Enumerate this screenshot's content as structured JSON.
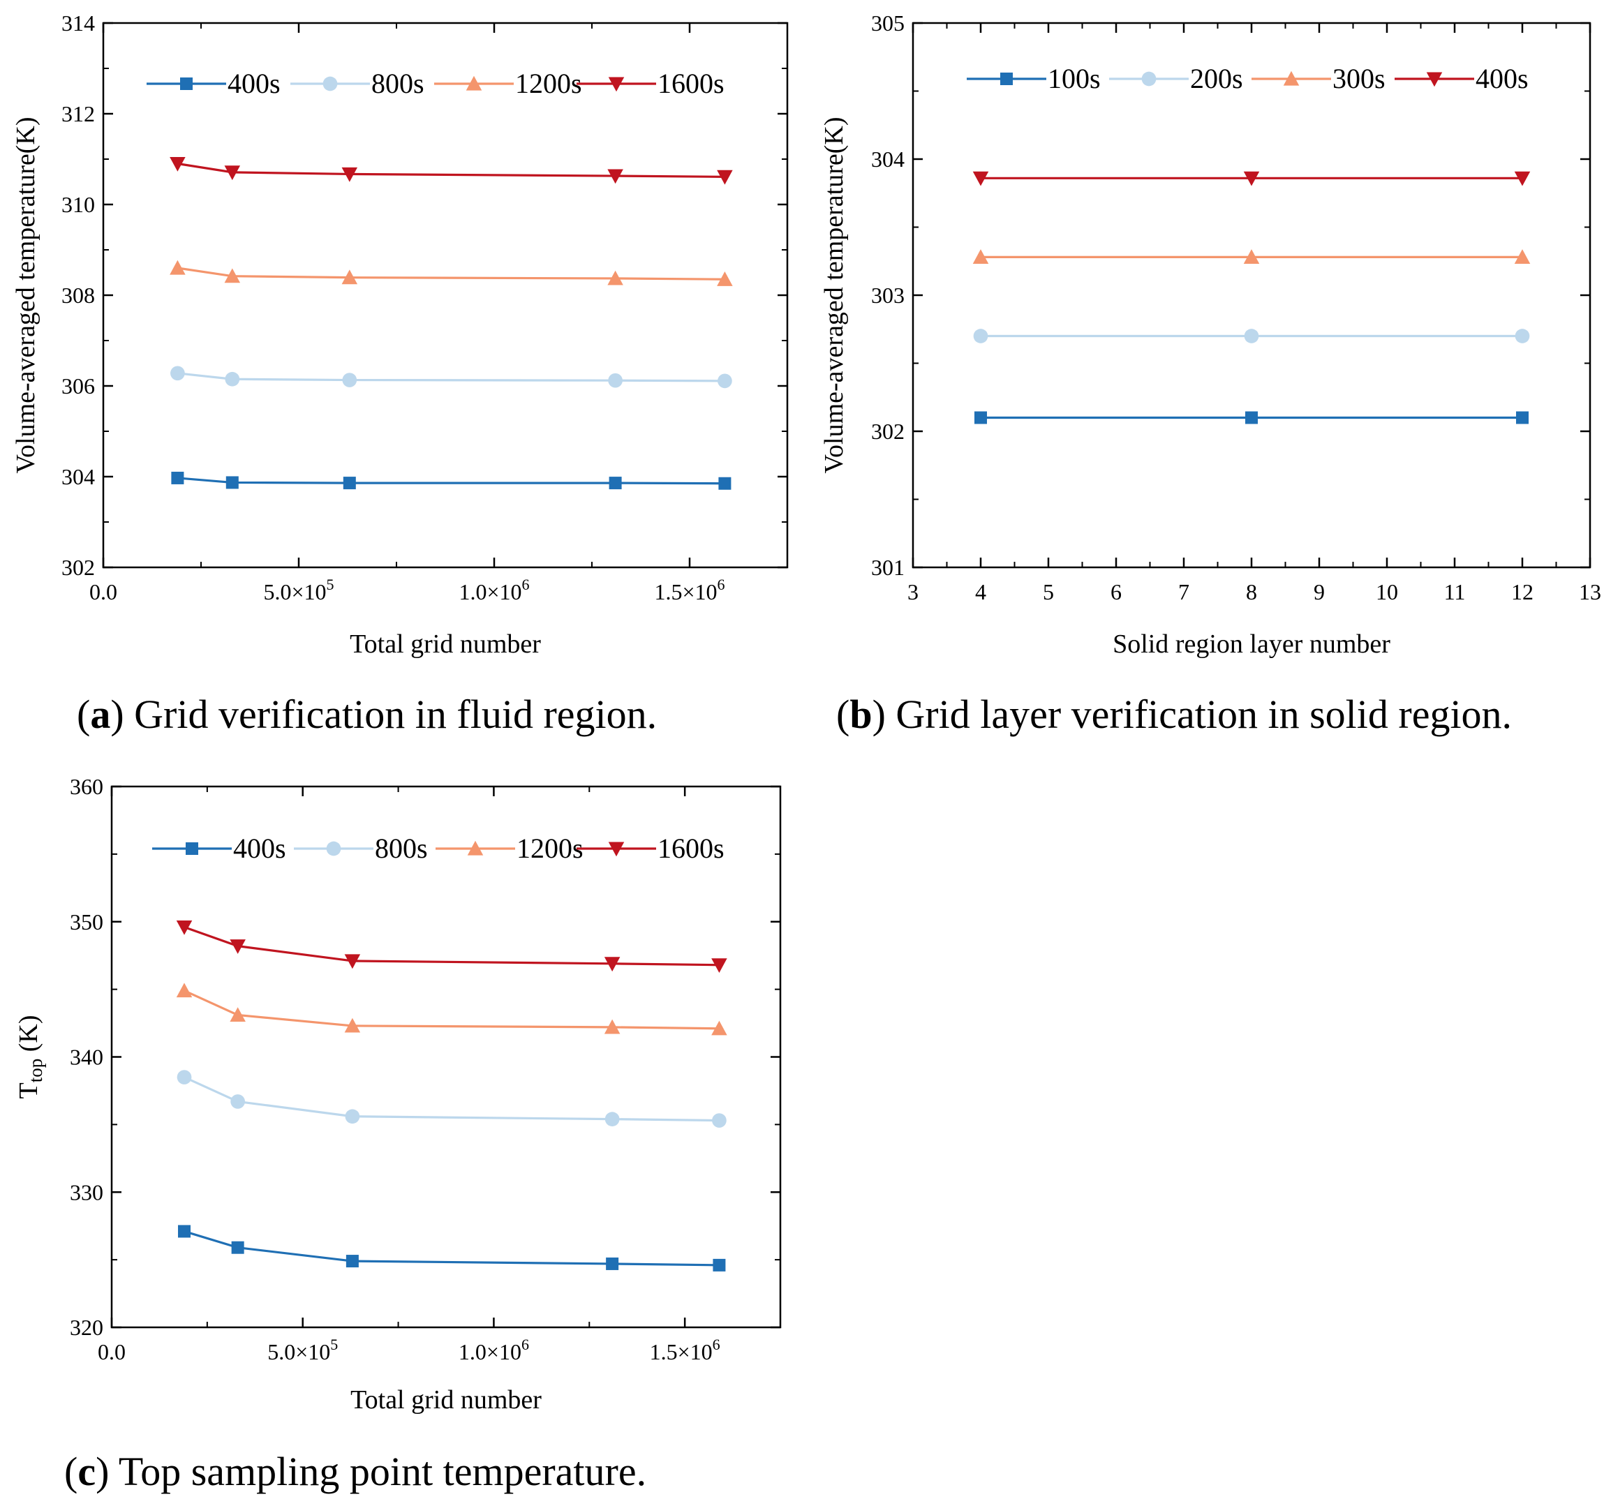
{
  "panels": [
    {
      "caption_letter": "a",
      "caption_text": "Grid verification in fluid region.",
      "chart_data": {
        "type": "line",
        "xlabel": "Total grid number",
        "ylabel": "Volume-averaged temperature(K)",
        "xlim": [
          0,
          1750000
        ],
        "ylim": [
          302,
          314
        ],
        "x_ticks": [
          0,
          500000,
          1000000,
          1500000
        ],
        "x_tick_labels": [
          {
            "text": "0.0",
            "sup": ""
          },
          {
            "text": "5.0×10",
            "sup": "5"
          },
          {
            "text": "1.0×10",
            "sup": "6"
          },
          {
            "text": "1.5×10",
            "sup": "6"
          }
        ],
        "y_ticks": [
          302,
          304,
          306,
          308,
          310,
          312,
          314
        ],
        "x": [
          190000,
          330000,
          630000,
          1310000,
          1590000
        ],
        "series": [
          {
            "name": "400s",
            "color": "#1f6fb4",
            "marker": "square",
            "values": [
              303.97,
              303.87,
              303.86,
              303.86,
              303.85
            ]
          },
          {
            "name": "800s",
            "color": "#bcd7ec",
            "marker": "circle",
            "values": [
              306.28,
              306.15,
              306.13,
              306.12,
              306.11
            ]
          },
          {
            "name": "1200s",
            "color": "#f4956c",
            "marker": "triangle-up",
            "values": [
              308.6,
              308.42,
              308.39,
              308.37,
              308.35
            ]
          },
          {
            "name": "1600s",
            "color": "#c0141f",
            "marker": "triangle-down",
            "values": [
              310.9,
              310.71,
              310.67,
              310.63,
              310.61
            ]
          }
        ],
        "legend": "top, horizontal"
      }
    },
    {
      "caption_letter": "b",
      "caption_text": "Grid layer verification in solid region.",
      "chart_data": {
        "type": "line",
        "xlabel": "Solid region layer number",
        "ylabel": "Volume-averaged temperature(K)",
        "xlim": [
          3,
          13
        ],
        "ylim": [
          301,
          305
        ],
        "x_ticks": [
          3,
          4,
          5,
          6,
          7,
          8,
          9,
          10,
          11,
          12,
          13
        ],
        "x_tick_labels": [
          {
            "text": "3",
            "sup": ""
          },
          {
            "text": "4",
            "sup": ""
          },
          {
            "text": "5",
            "sup": ""
          },
          {
            "text": "6",
            "sup": ""
          },
          {
            "text": "7",
            "sup": ""
          },
          {
            "text": "8",
            "sup": ""
          },
          {
            "text": "9",
            "sup": ""
          },
          {
            "text": "10",
            "sup": ""
          },
          {
            "text": "11",
            "sup": ""
          },
          {
            "text": "12",
            "sup": ""
          },
          {
            "text": "13",
            "sup": ""
          }
        ],
        "y_ticks": [
          301,
          302,
          303,
          304,
          305
        ],
        "x": [
          4,
          8,
          12
        ],
        "series": [
          {
            "name": "100s",
            "color": "#1f6fb4",
            "marker": "square",
            "values": [
              302.1,
              302.1,
              302.1
            ]
          },
          {
            "name": "200s",
            "color": "#bcd7ec",
            "marker": "circle",
            "values": [
              302.7,
              302.7,
              302.7
            ]
          },
          {
            "name": "300s",
            "color": "#f4956c",
            "marker": "triangle-up",
            "values": [
              303.28,
              303.28,
              303.28
            ]
          },
          {
            "name": "400s",
            "color": "#c0141f",
            "marker": "triangle-down",
            "values": [
              303.86,
              303.86,
              303.86
            ]
          }
        ],
        "legend": "top, horizontal"
      }
    },
    {
      "caption_letter": "c",
      "caption_text": "Top sampling point temperature.",
      "chart_data": {
        "type": "line",
        "xlabel": "Total grid number",
        "ylabel": "T",
        "ylabel_sub": "top",
        "ylabel_suffix": " (K)",
        "xlim": [
          0,
          1750000
        ],
        "ylim": [
          320,
          360
        ],
        "x_ticks": [
          0,
          500000,
          1000000,
          1500000
        ],
        "x_tick_labels": [
          {
            "text": "0.0",
            "sup": ""
          },
          {
            "text": "5.0×10",
            "sup": "5"
          },
          {
            "text": "1.0×10",
            "sup": "6"
          },
          {
            "text": "1.5×10",
            "sup": "6"
          }
        ],
        "y_ticks": [
          320,
          330,
          340,
          350,
          360
        ],
        "x": [
          190000,
          330000,
          630000,
          1310000,
          1590000
        ],
        "series": [
          {
            "name": "400s",
            "color": "#1f6fb4",
            "marker": "square",
            "values": [
              327.1,
              325.9,
              324.9,
              324.7,
              324.6
            ]
          },
          {
            "name": "800s",
            "color": "#bcd7ec",
            "marker": "circle",
            "values": [
              338.5,
              336.7,
              335.6,
              335.4,
              335.3
            ]
          },
          {
            "name": "1200s",
            "color": "#f4956c",
            "marker": "triangle-up",
            "values": [
              344.9,
              343.1,
              342.3,
              342.2,
              342.1
            ]
          },
          {
            "name": "1600s",
            "color": "#c0141f",
            "marker": "triangle-down",
            "values": [
              349.6,
              348.2,
              347.1,
              346.9,
              346.8
            ]
          }
        ],
        "legend": "top, horizontal"
      }
    }
  ]
}
